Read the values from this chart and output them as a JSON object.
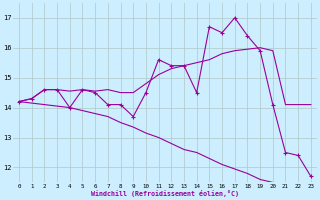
{
  "xlabel": "Windchill (Refroidissement éolien,°C)",
  "x": [
    0,
    1,
    2,
    3,
    4,
    5,
    6,
    7,
    8,
    9,
    10,
    11,
    12,
    13,
    14,
    15,
    16,
    17,
    18,
    19,
    20,
    21,
    22,
    23
  ],
  "line1": [
    14.2,
    14.3,
    14.6,
    14.6,
    14.0,
    14.6,
    14.5,
    14.1,
    14.1,
    13.7,
    14.5,
    15.6,
    15.4,
    15.4,
    14.5,
    16.7,
    16.5,
    17.0,
    16.4,
    15.9,
    14.1,
    12.5,
    12.4,
    11.7
  ],
  "line2": [
    14.2,
    14.3,
    14.6,
    14.6,
    14.55,
    14.6,
    14.55,
    14.6,
    14.5,
    14.5,
    14.8,
    15.1,
    15.3,
    15.4,
    15.5,
    15.6,
    15.8,
    15.9,
    15.95,
    16.0,
    15.9,
    14.1,
    14.1,
    14.1
  ],
  "line3": [
    14.2,
    14.15,
    14.1,
    14.05,
    14.0,
    13.9,
    13.8,
    13.7,
    13.5,
    13.35,
    13.15,
    13.0,
    12.8,
    12.6,
    12.5,
    12.3,
    12.1,
    11.95,
    11.8,
    11.6,
    11.5,
    11.4,
    11.35,
    11.3
  ],
  "line_color": "#990099",
  "bg_color": "#cceeff",
  "grid_color": "#b0c8c8",
  "ylim": [
    11.5,
    17.5
  ],
  "yticks": [
    12,
    13,
    14,
    15,
    16,
    17
  ],
  "xlim": [
    -0.5,
    23.5
  ]
}
